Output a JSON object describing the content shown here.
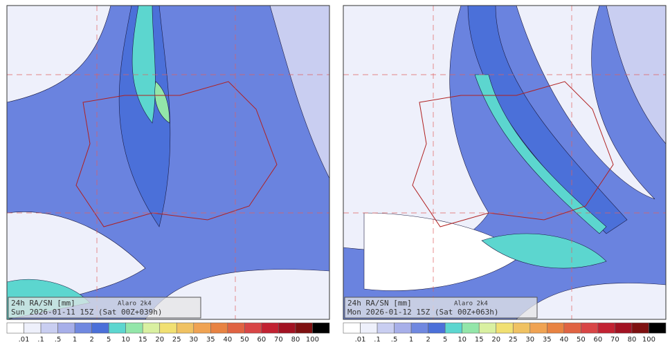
{
  "panels": [
    {
      "product": "24h RA/SN  [mm]",
      "model": "Alaro 2k4",
      "valid": "Sun 2026-01-11 15Z (Sat 00Z+039h)"
    },
    {
      "product": "24h RA/SN  [mm]",
      "model": "Alaro 2k4",
      "valid": "Mon 2026-01-12 15Z (Sat 00Z+063h)"
    }
  ],
  "colorbar": {
    "labels": [
      ".01",
      ".1",
      ".5",
      "1",
      "2",
      "5",
      "10",
      "15",
      "20",
      "25",
      "30",
      "35",
      "40",
      "50",
      "60",
      "70",
      "80",
      "100"
    ],
    "colors": [
      "#ffffff",
      "#eef0fb",
      "#c9cef1",
      "#a7afe9",
      "#7088e0",
      "#4b70d9",
      "#5cd6cf",
      "#93e6a9",
      "#d9f0a1",
      "#f1e072",
      "#f0c262",
      "#f0a352",
      "#e88342",
      "#e06342",
      "#d84545",
      "#c22232",
      "#a21222",
      "#7e1010",
      "#000000"
    ]
  }
}
